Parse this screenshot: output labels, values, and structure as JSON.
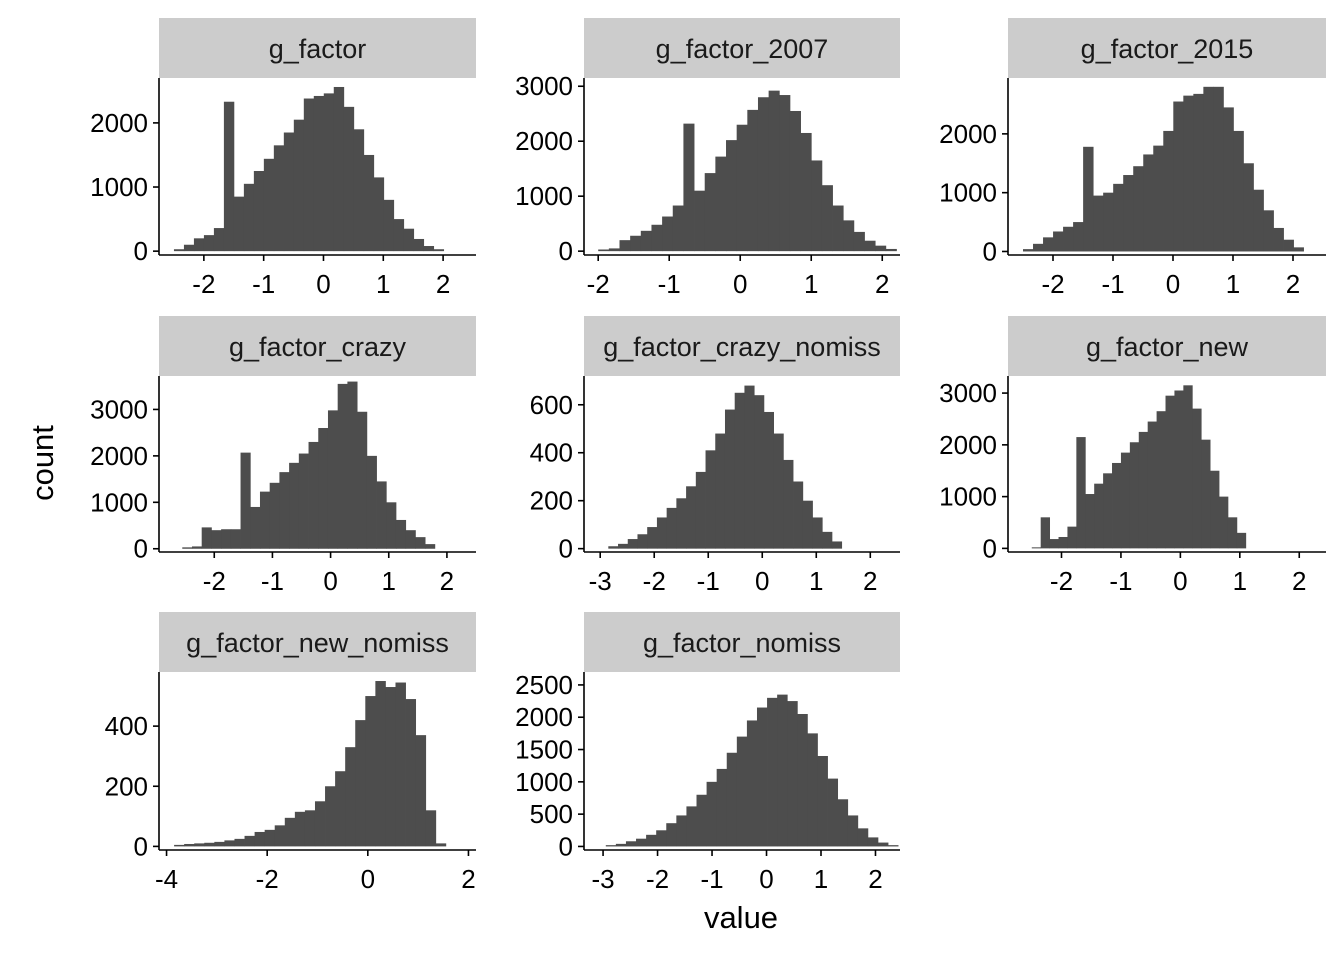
{
  "chart_data": {
    "type": "bar",
    "xlabel": "value",
    "ylabel": "count",
    "colors": {
      "bar": "#4d4d4d",
      "strip": "#cccccc",
      "axis": "#000000"
    },
    "panels": [
      {
        "title": "g_factor",
        "xlim": [
          -2.75,
          2.55
        ],
        "ylim": [
          -60,
          2700
        ],
        "xticks": [
          -2,
          -1,
          0,
          1,
          2
        ],
        "yticks": [
          0,
          1000,
          2000
        ],
        "bin_start": -2.5,
        "bin_width": 0.167,
        "values": [
          30,
          100,
          200,
          250,
          360,
          2330,
          850,
          1050,
          1250,
          1440,
          1650,
          1850,
          2050,
          2380,
          2420,
          2460,
          2560,
          2250,
          1900,
          1500,
          1150,
          800,
          500,
          350,
          190,
          80,
          30
        ]
      },
      {
        "title": "g_factor_2007",
        "xlim": [
          -2.2,
          2.25
        ],
        "ylim": [
          -70,
          3150
        ],
        "xticks": [
          -2,
          -1,
          0,
          1,
          2
        ],
        "yticks": [
          0,
          1000,
          2000,
          3000
        ],
        "bin_start": -2.0,
        "bin_width": 0.15,
        "values": [
          30,
          50,
          200,
          280,
          370,
          480,
          630,
          830,
          2320,
          1100,
          1420,
          1720,
          2020,
          2300,
          2570,
          2800,
          2920,
          2840,
          2550,
          2150,
          1650,
          1200,
          830,
          560,
          350,
          190,
          100,
          40
        ]
      },
      {
        "title": "g_factor_2015",
        "xlim": [
          -2.75,
          2.55
        ],
        "ylim": [
          -60,
          2950
        ],
        "xticks": [
          -2,
          -1,
          0,
          1,
          2
        ],
        "yticks": [
          0,
          1000,
          2000
        ],
        "bin_start": -2.5,
        "bin_width": 0.167,
        "values": [
          40,
          130,
          240,
          340,
          420,
          500,
          1780,
          950,
          1000,
          1150,
          1300,
          1450,
          1650,
          1800,
          2050,
          2550,
          2650,
          2680,
          2800,
          2800,
          2450,
          2050,
          1500,
          1050,
          700,
          400,
          200,
          70
        ]
      },
      {
        "title": "g_factor_crazy",
        "xlim": [
          -2.95,
          2.5
        ],
        "ylim": [
          -70,
          3720
        ],
        "xticks": [
          -2,
          -1,
          0,
          1,
          2
        ],
        "yticks": [
          0,
          1000,
          2000,
          3000
        ],
        "bin_start": -2.55,
        "bin_width": 0.167,
        "values": [
          30,
          50,
          460,
          400,
          420,
          420,
          2070,
          900,
          1230,
          1420,
          1650,
          1850,
          2050,
          2300,
          2600,
          2980,
          3550,
          3600,
          2950,
          2000,
          1450,
          1000,
          620,
          400,
          250,
          100
        ]
      },
      {
        "title": "g_factor_crazy_nomiss",
        "xlim": [
          -3.3,
          2.55
        ],
        "ylim": [
          -14,
          720
        ],
        "xticks": [
          -3,
          -2,
          -1,
          0,
          1,
          2
        ],
        "yticks": [
          0,
          200,
          400,
          600
        ],
        "bin_start": -2.85,
        "bin_width": 0.18,
        "values": [
          10,
          20,
          40,
          60,
          90,
          130,
          170,
          210,
          260,
          320,
          410,
          480,
          580,
          650,
          680,
          640,
          570,
          480,
          370,
          280,
          200,
          130,
          70,
          30
        ]
      },
      {
        "title": "g_factor_new",
        "xlim": [
          -2.9,
          2.45
        ],
        "ylim": [
          -70,
          3330
        ],
        "xticks": [
          -2,
          -1,
          0,
          1,
          2
        ],
        "yticks": [
          0,
          1000,
          2000,
          3000
        ],
        "bin_start": -2.5,
        "bin_width": 0.15,
        "values": [
          20,
          600,
          180,
          220,
          420,
          2150,
          1050,
          1250,
          1450,
          1650,
          1850,
          2050,
          2250,
          2450,
          2650,
          2950,
          3050,
          3150,
          2700,
          2100,
          1500,
          1000,
          600,
          300
        ]
      },
      {
        "title": "g_factor_new_nomiss",
        "xlim": [
          -4.15,
          2.15
        ],
        "ylim": [
          -12,
          580
        ],
        "xticks": [
          -4,
          -2,
          0,
          2
        ],
        "yticks": [
          0,
          200,
          400
        ],
        "bin_start": -3.85,
        "bin_width": 0.2,
        "values": [
          5,
          8,
          10,
          12,
          15,
          20,
          25,
          35,
          48,
          55,
          70,
          95,
          115,
          120,
          150,
          200,
          250,
          330,
          420,
          500,
          550,
          530,
          545,
          490,
          370,
          120,
          10
        ]
      },
      {
        "title": "g_factor_nomiss",
        "xlim": [
          -3.35,
          2.45
        ],
        "ylim": [
          -55,
          2700
        ],
        "xticks": [
          -3,
          -2,
          -1,
          0,
          1,
          2
        ],
        "yticks": [
          0,
          500,
          1000,
          1500,
          2000,
          2500
        ],
        "bin_start": -2.95,
        "bin_width": 0.185,
        "values": [
          20,
          40,
          80,
          120,
          180,
          250,
          360,
          480,
          620,
          800,
          1000,
          1200,
          1450,
          1700,
          1950,
          2150,
          2300,
          2350,
          2250,
          2050,
          1750,
          1400,
          1050,
          730,
          480,
          280,
          140,
          60,
          20
        ]
      }
    ]
  }
}
